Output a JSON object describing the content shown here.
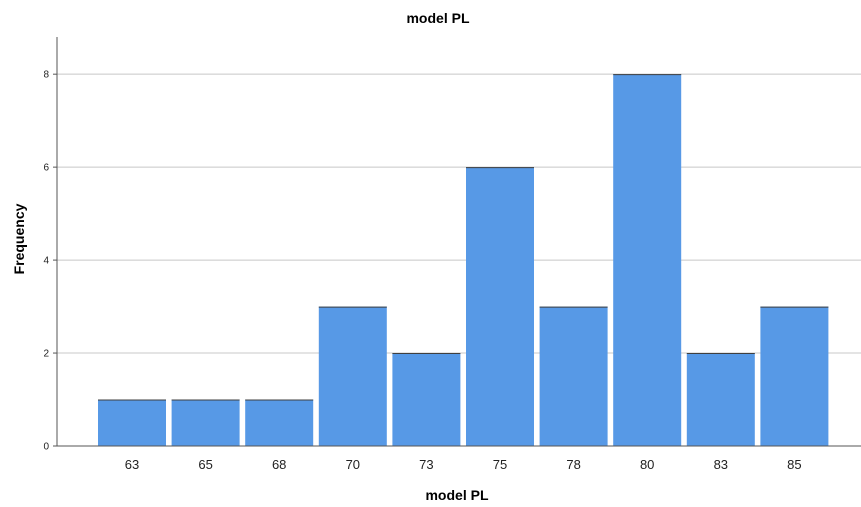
{
  "chart_data": {
    "type": "bar",
    "title": "model PL",
    "xlabel": "model PL",
    "ylabel": "Frequency",
    "categories": [
      "63",
      "65",
      "68",
      "70",
      "73",
      "75",
      "78",
      "80",
      "83",
      "85"
    ],
    "values": [
      1,
      1,
      1,
      3,
      2,
      6,
      3,
      8,
      2,
      3
    ],
    "ylim": [
      0,
      8.8
    ],
    "yticks": [
      "0",
      "2",
      "4",
      "6",
      "8"
    ],
    "grid": true,
    "bar_color": "#5799e6",
    "bar_edge_color": "#ffffff"
  }
}
